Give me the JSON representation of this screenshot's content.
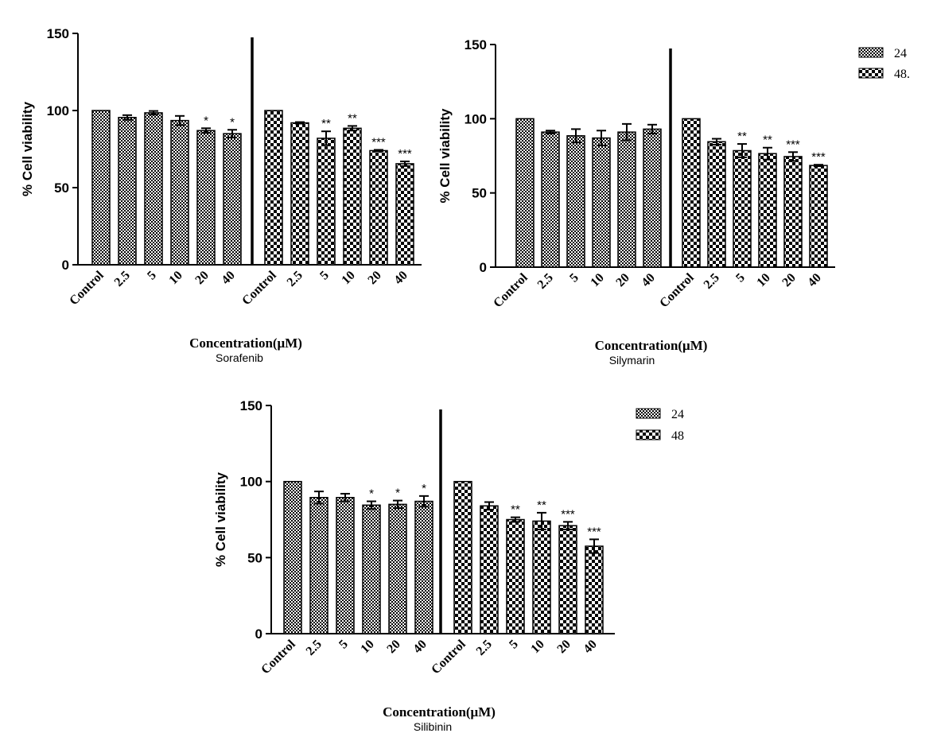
{
  "colors": {
    "axis": "#000000",
    "pattern_24": "checker-fine",
    "pattern_48": "checker-coarse"
  },
  "chart_data": [
    {
      "type": "bar",
      "title": "Sorafenib",
      "xlabel": "Concentration(μM)",
      "ylabel": "% Cell viability",
      "ylim": [
        0,
        150
      ],
      "yticks": [
        "0",
        "50",
        "100",
        "150"
      ],
      "categories": [
        "Control",
        "2.5",
        "5",
        "10",
        "20",
        "40"
      ],
      "series": [
        {
          "name": "24",
          "values": [
            100,
            95.5,
            98.5,
            93.5,
            87,
            85
          ],
          "errors": [
            0,
            1.5,
            1.2,
            3.0,
            1.5,
            2.5
          ],
          "sig": [
            "",
            "",
            "",
            "",
            "*",
            "*"
          ]
        },
        {
          "name": "48",
          "values": [
            100,
            92,
            82,
            88.5,
            74,
            65.5
          ],
          "errors": [
            0,
            0.5,
            4.5,
            1.5,
            0.5,
            1.5
          ],
          "sig": [
            "",
            "",
            "**",
            "**",
            "***",
            "***"
          ]
        }
      ],
      "legend": null
    },
    {
      "type": "bar",
      "title": "Silymarin",
      "xlabel": "Concentration(μM)",
      "ylabel": "% Cell viability",
      "ylim": [
        0,
        150
      ],
      "yticks": [
        "0",
        "50",
        "100",
        "150"
      ],
      "categories": [
        "Control",
        "2.5",
        "5",
        "10",
        "20",
        "40"
      ],
      "series": [
        {
          "name": "24",
          "values": [
            100,
            91,
            88.5,
            87,
            91,
            93
          ],
          "errors": [
            0,
            1.0,
            4.5,
            5.0,
            5.5,
            3.0
          ],
          "sig": [
            "",
            "",
            "",
            "",
            "",
            ""
          ]
        },
        {
          "name": "48",
          "values": [
            100,
            84.5,
            78.5,
            76.5,
            74.5,
            68.5
          ],
          "errors": [
            0,
            2.0,
            4.5,
            4.0,
            3.0,
            0.5
          ],
          "sig": [
            "",
            "",
            "**",
            "**",
            "***",
            "***"
          ]
        }
      ],
      "legend": {
        "position": "top-right",
        "entries": [
          "24",
          "48."
        ]
      }
    },
    {
      "type": "bar",
      "title": "Silibinin",
      "xlabel": "Concentration(μM)",
      "ylabel": "% Cell viability",
      "ylim": [
        0,
        150
      ],
      "yticks": [
        "0",
        "50",
        "100",
        "150"
      ],
      "categories": [
        "Control",
        "2.5",
        "5",
        "10",
        "20",
        "40"
      ],
      "series": [
        {
          "name": "24",
          "values": [
            100,
            89.5,
            89.5,
            84.5,
            85,
            87
          ],
          "errors": [
            0,
            4.0,
            2.5,
            2.5,
            2.5,
            3.5
          ],
          "sig": [
            "",
            "",
            "",
            "*",
            "*",
            "*"
          ]
        },
        {
          "name": "48",
          "values": [
            100,
            84,
            75,
            74,
            71,
            57.5
          ],
          "errors": [
            0,
            2.5,
            1.5,
            5.5,
            2.5,
            4.5
          ],
          "sig": [
            "",
            "",
            "**",
            "**",
            "***",
            "***"
          ]
        }
      ],
      "legend": {
        "position": "top-right",
        "entries": [
          "24",
          "48"
        ]
      }
    }
  ]
}
